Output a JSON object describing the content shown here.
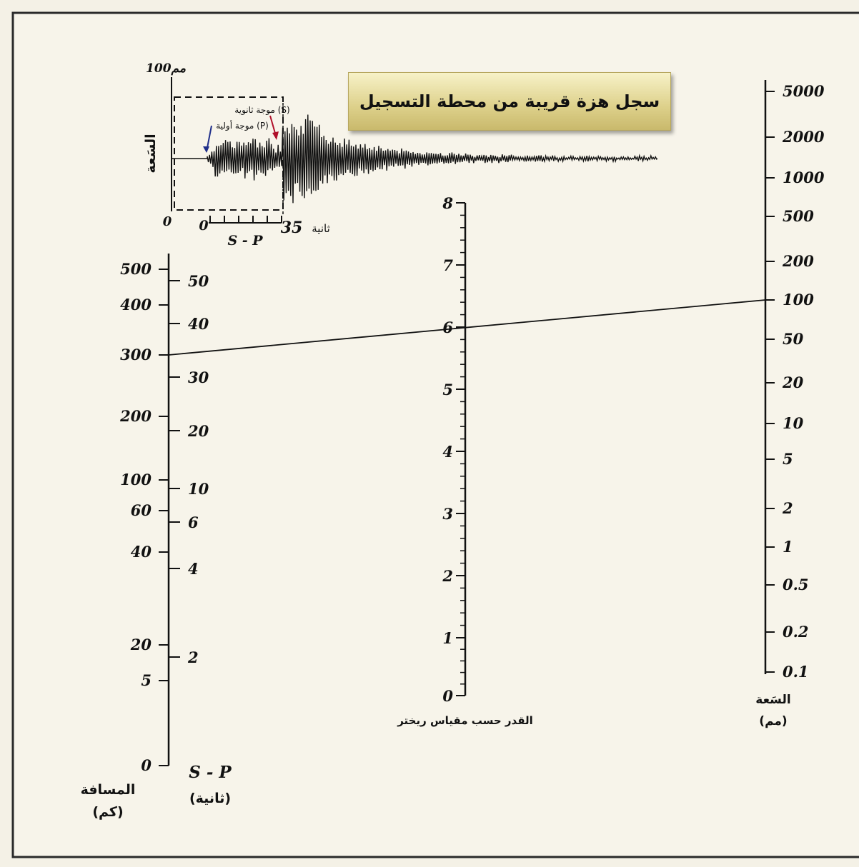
{
  "title": "سجل هزة قريبة من محطة التسجيل",
  "seismogram": {
    "amplitude_label": "السَعة",
    "amplitude_max": "100مم",
    "amplitude_zero": "0",
    "time_zero": "0",
    "time_end": "35",
    "time_unit": "ثانية",
    "sp_label": "S - P",
    "p_wave_label": "موجة أولية (P)",
    "s_wave_label": "موجة ثانوية (S)",
    "colors": {
      "p_wave": "#1f2e8a",
      "s_wave": "#b0102a"
    }
  },
  "distance_axis": {
    "label": "المسافة",
    "unit": "(كم)",
    "ticks": [
      "500",
      "400",
      "300",
      "200",
      "100",
      "60",
      "40",
      "20",
      "5",
      "0"
    ]
  },
  "sp_axis": {
    "label": "S - P",
    "unit": "(ثانية)",
    "ticks": [
      "50",
      "40",
      "30",
      "20",
      "10",
      "6",
      "4",
      "2"
    ]
  },
  "magnitude_axis": {
    "label": "القدر حسب مقياس ريختر",
    "ticks": [
      "8",
      "7",
      "6",
      "5",
      "4",
      "3",
      "2",
      "1",
      "0"
    ]
  },
  "amplitude_axis": {
    "label": "السَعة",
    "unit": "(مم)",
    "ticks": [
      "5000",
      "2000",
      "1000",
      "500",
      "200",
      "100",
      "50",
      "20",
      "10",
      "5",
      "2",
      "1",
      "0.5",
      "0.2",
      "0.1"
    ]
  },
  "reading": {
    "distance_km": 300,
    "magnitude": 6,
    "amplitude_mm": 100
  }
}
